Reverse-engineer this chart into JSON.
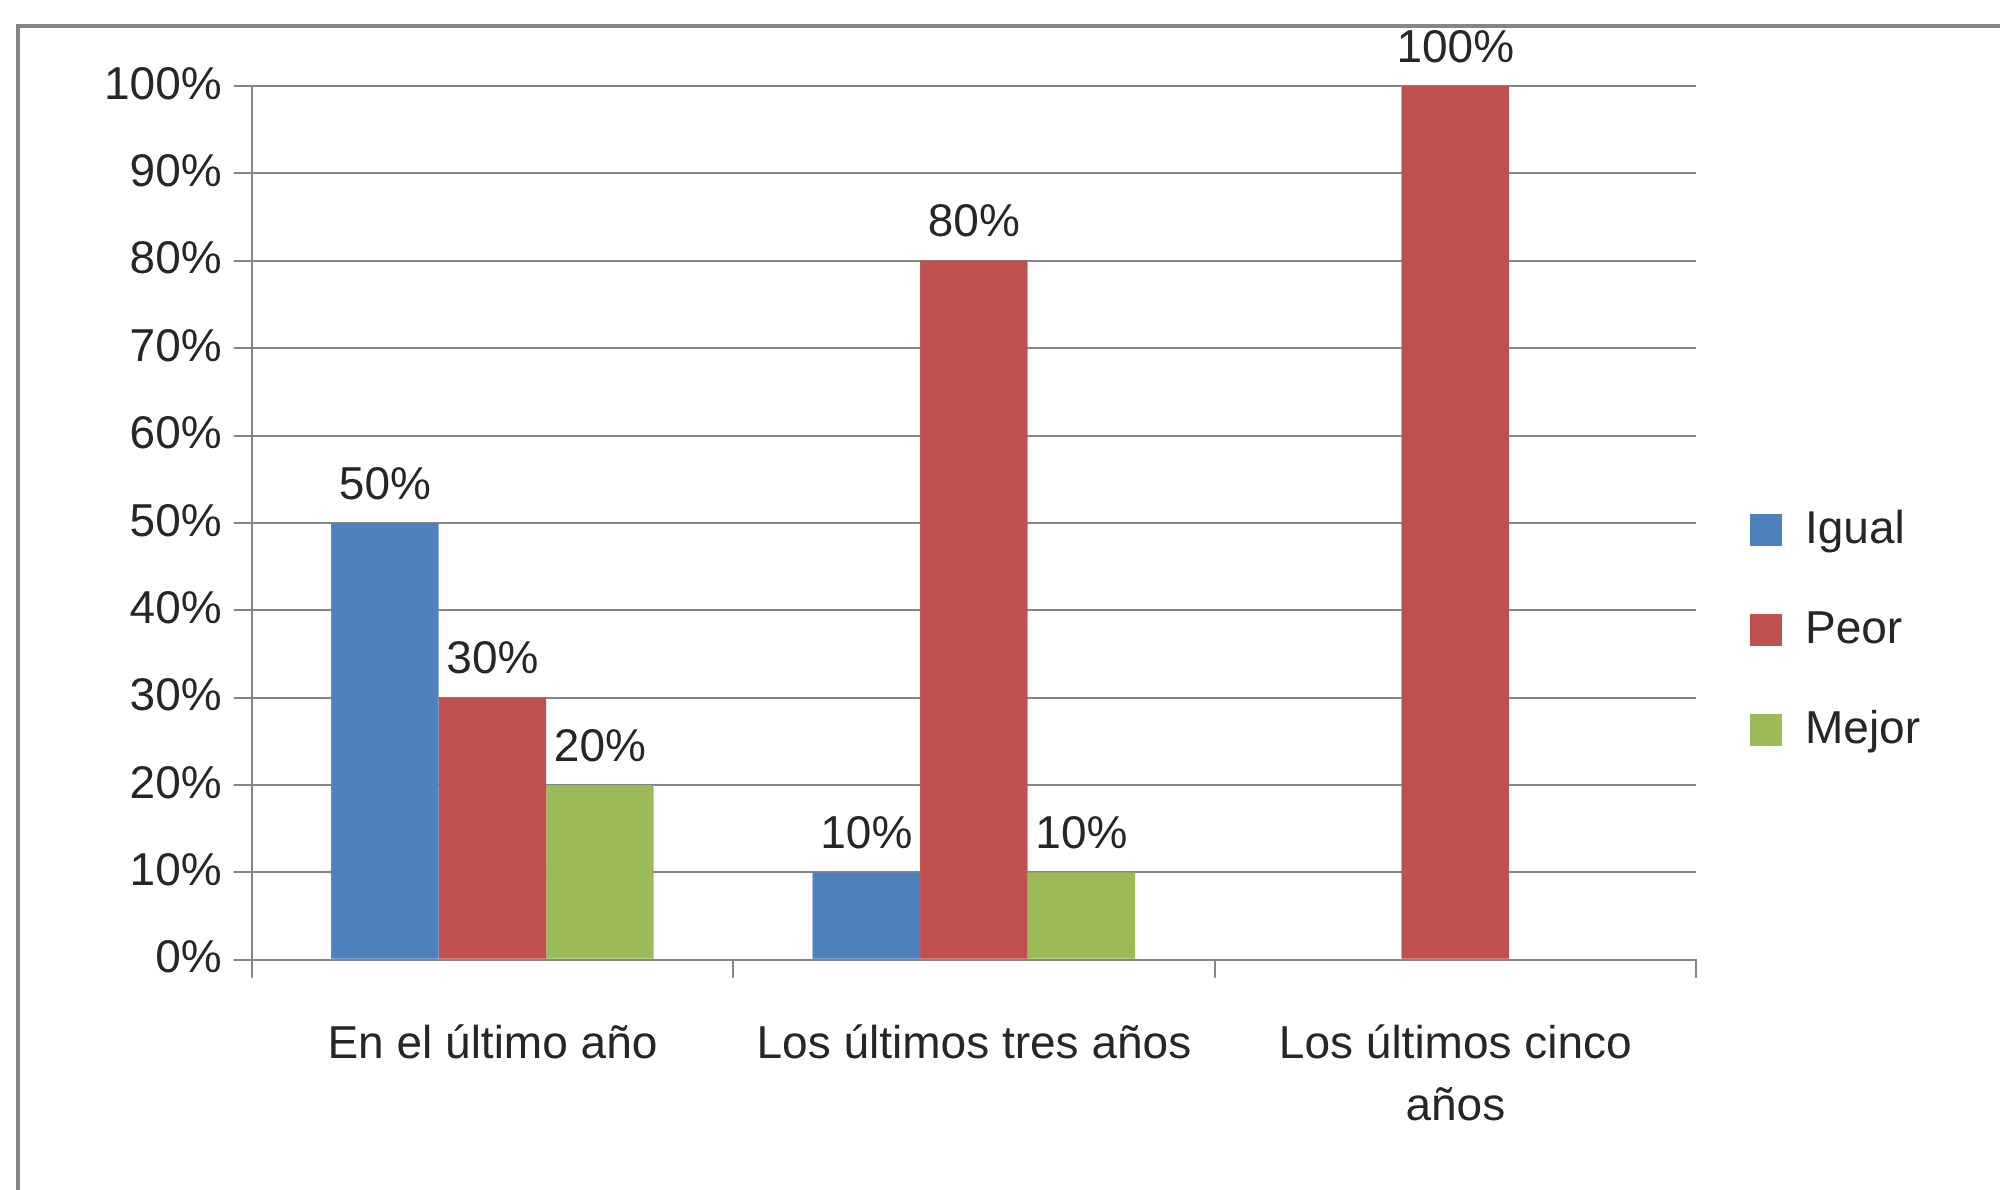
{
  "chart_data": {
    "type": "bar",
    "categories": [
      "En el último año",
      "Los últimos tres años",
      "Los últimos cinco años"
    ],
    "series": [
      {
        "name": "Igual",
        "color": "#4f81bd",
        "values": [
          50,
          10,
          null
        ],
        "value_labels": [
          "50%",
          "10%",
          null
        ]
      },
      {
        "name": "Peor",
        "color": "#c0504d",
        "values": [
          30,
          80,
          100
        ],
        "value_labels": [
          "30%",
          "80%",
          "100%"
        ]
      },
      {
        "name": "Mejor",
        "color": "#9bbb59",
        "values": [
          20,
          10,
          null
        ],
        "value_labels": [
          "20%",
          "10%",
          null
        ]
      }
    ],
    "ylim": [
      0,
      100
    ],
    "yticks": [
      {
        "value": 0,
        "label": "0%"
      },
      {
        "value": 10,
        "label": "10%"
      },
      {
        "value": 20,
        "label": "20%"
      },
      {
        "value": 30,
        "label": "30%"
      },
      {
        "value": 40,
        "label": "40%"
      },
      {
        "value": 50,
        "label": "50%"
      },
      {
        "value": 60,
        "label": "60%"
      },
      {
        "value": 70,
        "label": "70%"
      },
      {
        "value": 80,
        "label": "80%"
      },
      {
        "value": 90,
        "label": "90%"
      },
      {
        "value": 100,
        "label": "100%"
      }
    ],
    "grid": "y",
    "legend": "right"
  }
}
